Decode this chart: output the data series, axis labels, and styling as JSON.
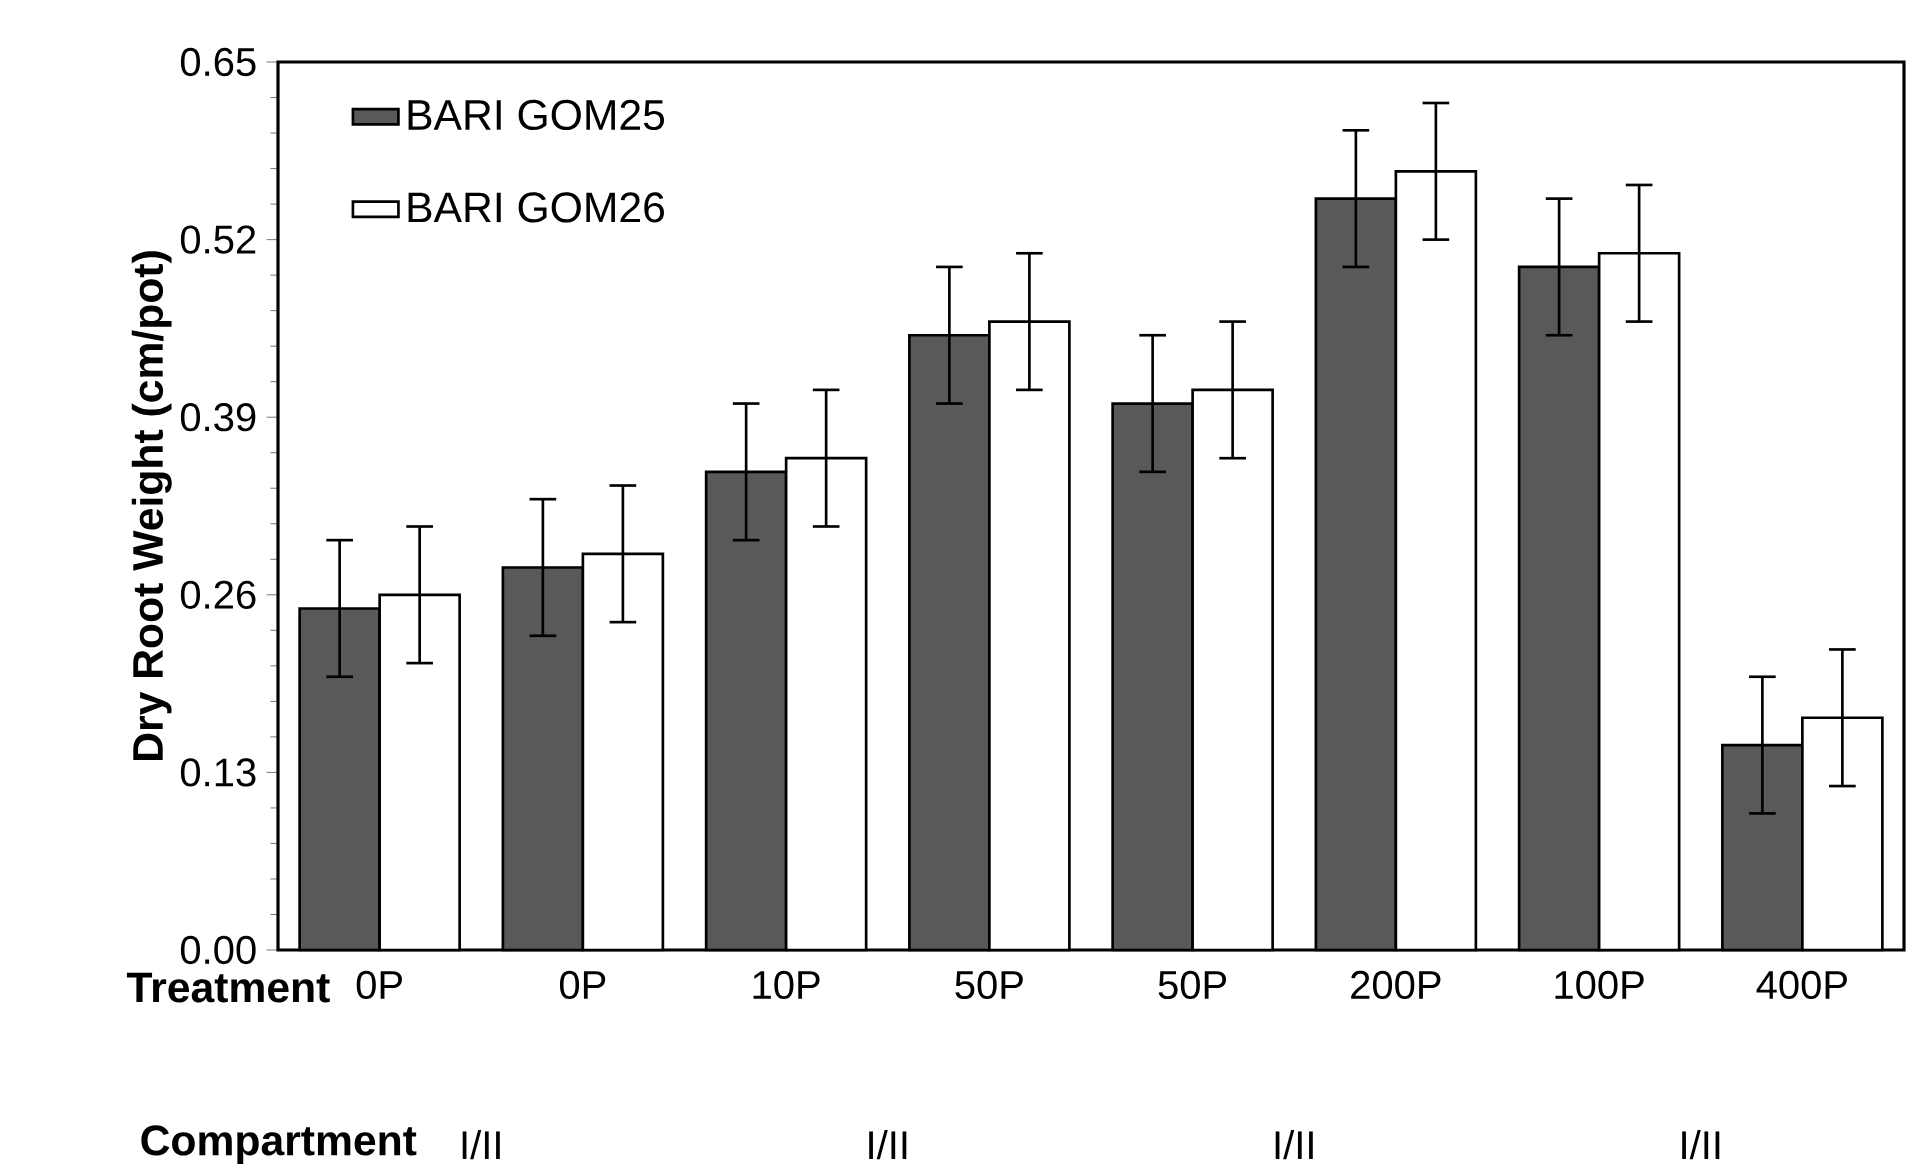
{
  "chart_data": {
    "type": "bar",
    "categories": [
      "0P",
      "0P",
      "10P",
      "50P",
      "50P",
      "200P",
      "100P",
      "400P"
    ],
    "xlabel": "Treatment",
    "ylabel": "Dry Root Weight (cm/pot)",
    "annotations": [
      "Compartment",
      "I/II",
      "I/II",
      "I/II",
      "I/II"
    ],
    "series": [
      {
        "name": "BARI GOM25",
        "color": "#595959",
        "values": [
          0.25,
          0.28,
          0.35,
          0.45,
          0.4,
          0.55,
          0.5,
          0.15
        ],
        "errors": [
          0.05,
          0.05,
          0.05,
          0.05,
          0.05,
          0.05,
          0.05,
          0.05
        ]
      },
      {
        "name": "BARI GOM26",
        "color": "#ffffff",
        "values": [
          0.26,
          0.29,
          0.36,
          0.46,
          0.41,
          0.57,
          0.51,
          0.17
        ],
        "errors": [
          0.05,
          0.05,
          0.05,
          0.05,
          0.05,
          0.05,
          0.05,
          0.05
        ]
      }
    ],
    "ylim": [
      0,
      0.65
    ],
    "yticks": [
      {
        "value": 0,
        "label": "0.00"
      },
      {
        "value": 0.13,
        "label": "0.13"
      },
      {
        "value": 0.26,
        "label": "0.26"
      },
      {
        "value": 0.39,
        "label": "0.39"
      },
      {
        "value": 0.52,
        "label": "0.52"
      },
      {
        "value": 0.65,
        "label": "0.65"
      }
    ],
    "grid": false,
    "legend": "top left"
  }
}
